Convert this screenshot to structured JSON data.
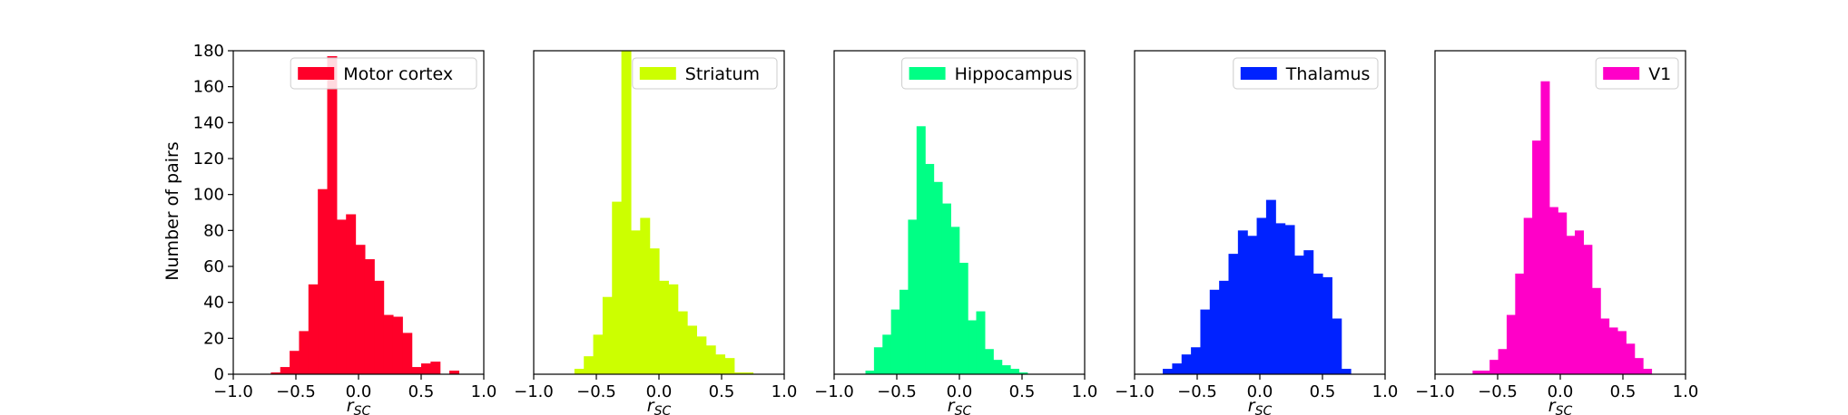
{
  "chart_data": [
    {
      "type": "bar",
      "panel": "histogram",
      "xlabel": "r",
      "xlabel_sub": "SC",
      "ylabel": "Number of pairs",
      "xlim": [
        -1.0,
        1.0
      ],
      "ylim": [
        0,
        180
      ],
      "xticks": [
        "−1.0",
        "−0.5",
        "0.0",
        "0.5",
        "1.0"
      ],
      "yticks": [
        "0",
        "20",
        "40",
        "60",
        "80",
        "100",
        "120",
        "140",
        "160",
        "180"
      ],
      "bin_width": 0.075,
      "series": [
        {
          "name": "Motor cortex",
          "color": "#ff0029",
          "bin_edges_start": -0.7,
          "values": [
            1,
            4,
            13,
            24,
            50,
            103,
            177,
            86,
            89,
            72,
            64,
            52,
            33,
            32,
            23,
            4,
            6,
            7,
            0,
            2
          ]
        }
      ]
    },
    {
      "type": "bar",
      "panel": "histogram",
      "xlabel": "r",
      "xlabel_sub": "SC",
      "xlim": [
        -1.0,
        1.0
      ],
      "ylim": [
        0,
        180
      ],
      "xticks": [
        "−1.0",
        "−0.5",
        "0.0",
        "0.5",
        "1.0"
      ],
      "bin_width": 0.075,
      "series": [
        {
          "name": "Striatum",
          "color": "#ccff00",
          "bin_edges_start": -0.675,
          "values": [
            3,
            10,
            22,
            43,
            96,
            180,
            80,
            87,
            70,
            52,
            50,
            35,
            27,
            21,
            16,
            11,
            9,
            1,
            1
          ]
        }
      ]
    },
    {
      "type": "bar",
      "panel": "histogram",
      "xlabel": "r",
      "xlabel_sub": "SC",
      "xlim": [
        -1.0,
        1.0
      ],
      "ylim": [
        0,
        180
      ],
      "xticks": [
        "−1.0",
        "−0.5",
        "0.0",
        "0.5",
        "1.0"
      ],
      "bin_width": 0.068,
      "series": [
        {
          "name": "Hippocampus",
          "color": "#00ff85",
          "bin_edges_start": -0.75,
          "values": [
            2,
            15,
            22,
            36,
            47,
            86,
            138,
            117,
            107,
            95,
            82,
            62,
            30,
            35,
            14,
            8,
            5,
            3,
            1
          ]
        }
      ]
    },
    {
      "type": "bar",
      "panel": "histogram",
      "xlabel": "r",
      "xlabel_sub": "SC",
      "xlim": [
        -1.0,
        1.0
      ],
      "ylim": [
        0,
        180
      ],
      "xticks": [
        "−1.0",
        "−0.5",
        "0.0",
        "0.5",
        "1.0"
      ],
      "bin_width": 0.075,
      "series": [
        {
          "name": "Thalamus",
          "color": "#0022ff",
          "bin_edges_start": -0.775,
          "values": [
            3,
            6,
            11,
            15,
            36,
            47,
            52,
            67,
            80,
            77,
            87,
            97,
            84,
            83,
            66,
            69,
            56,
            54,
            31,
            3
          ]
        }
      ]
    },
    {
      "type": "bar",
      "panel": "histogram",
      "xlabel": "r",
      "xlabel_sub": "SC",
      "xlim": [
        -1.0,
        1.0
      ],
      "ylim": [
        0,
        180
      ],
      "xticks": [
        "−1.0",
        "−0.5",
        "0.0",
        "0.5",
        "1.0"
      ],
      "bin_width": 0.068,
      "series": [
        {
          "name": "V1",
          "color": "#ff00c8",
          "bin_edges_start": -0.7,
          "values": [
            2,
            2,
            8,
            14,
            33,
            56,
            87,
            130,
            163,
            93,
            90,
            77,
            80,
            72,
            48,
            31,
            26,
            24,
            17,
            9,
            3
          ]
        }
      ]
    }
  ]
}
